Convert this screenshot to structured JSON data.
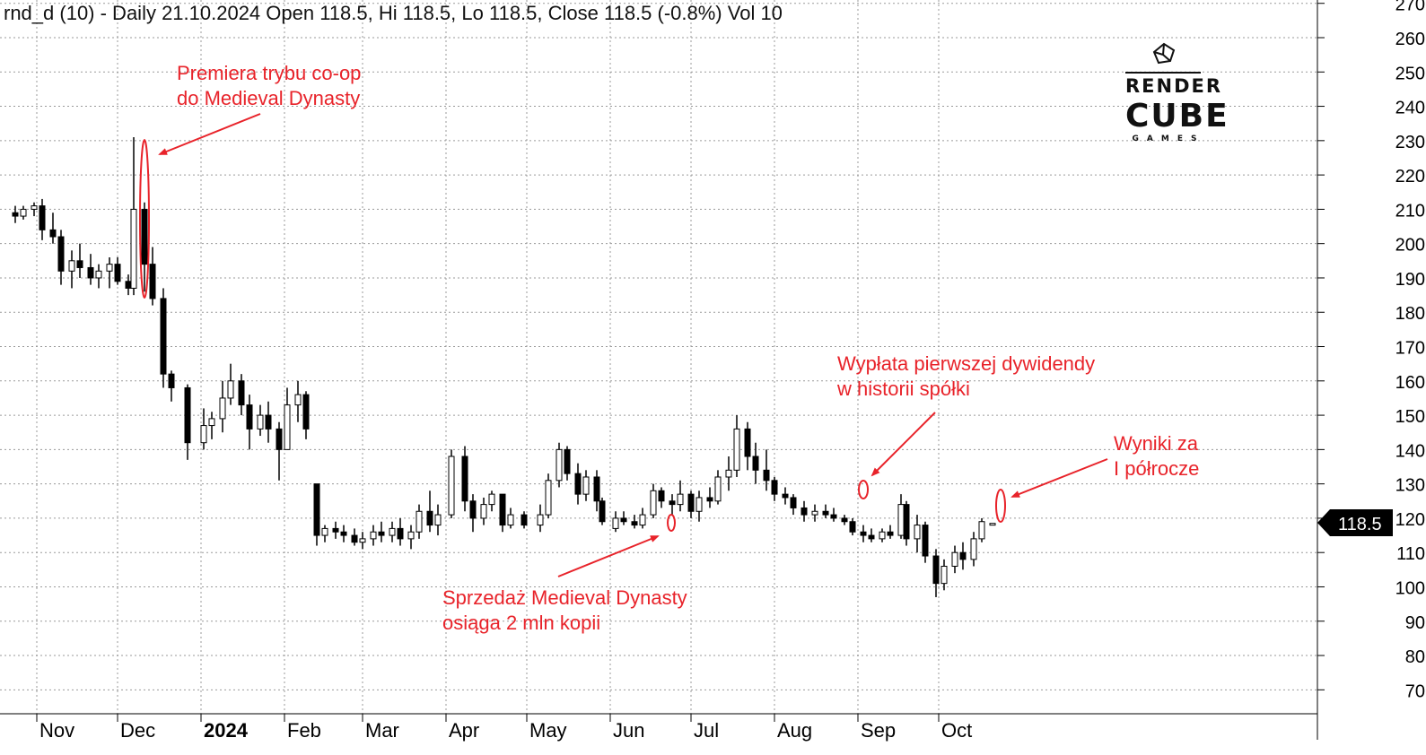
{
  "header": {
    "title": "rnd_d (10) - Daily 21.10.2024 Open 118.5, Hi 118.5, Lo 118.5, Close 118.5 (-0.8%) Vol 10"
  },
  "logo": {
    "line1": "RENDER",
    "line2": "CUBE",
    "line3": "GAMES"
  },
  "annotations": {
    "coop": {
      "line1": "Premiera trybu co-op",
      "line2": "do Medieval Dynasty"
    },
    "sales": {
      "line1": "Sprzedaż Medieval Dynasty",
      "line2": "osiąga 2 mln kopii"
    },
    "dividend": {
      "line1": "Wypłata pierwszej dywidendy",
      "line2": "w historii spółki"
    },
    "results": {
      "line1": "Wyniki za",
      "line2": "I półrocze"
    }
  },
  "price_tag": "118.5",
  "colors": {
    "annotation": "#e8232a",
    "bars": "#000000",
    "grid": "#a0a0a0"
  },
  "chart_data": {
    "type": "ohlc",
    "symbol": "rnd_d",
    "title": "rnd_d (10) - Daily 21.10.2024 Open 118.5, Hi 118.5, Lo 118.5, Close 118.5 (-0.8%) Vol 10",
    "x_ticks": [
      "Nov",
      "Dec",
      "2024",
      "Feb",
      "Mar",
      "Apr",
      "May",
      "Jun",
      "Jul",
      "Aug",
      "Sep",
      "Oct"
    ],
    "y_ticks": [
      70,
      80,
      90,
      100,
      110,
      120,
      130,
      140,
      150,
      160,
      170,
      180,
      190,
      200,
      210,
      220,
      230,
      240,
      250,
      260,
      270
    ],
    "ylim": [
      64,
      272
    ],
    "last_close": 118.5,
    "grid": true,
    "bars": [
      {
        "date": "2023-10-24",
        "open": 209,
        "high": 211,
        "low": 206,
        "close": 208
      },
      {
        "date": "2023-10-27",
        "open": 208,
        "high": 211,
        "low": 207,
        "close": 210
      },
      {
        "date": "2023-10-31",
        "open": 210,
        "high": 212,
        "low": 208,
        "close": 211
      },
      {
        "date": "2023-11-03",
        "open": 211,
        "high": 213,
        "low": 201,
        "close": 204
      },
      {
        "date": "2023-11-07",
        "open": 204,
        "high": 209,
        "low": 200,
        "close": 202
      },
      {
        "date": "2023-11-10",
        "open": 202,
        "high": 204,
        "low": 188,
        "close": 192
      },
      {
        "date": "2023-11-14",
        "open": 192,
        "high": 198,
        "low": 187,
        "close": 195
      },
      {
        "date": "2023-11-17",
        "open": 195,
        "high": 200,
        "low": 190,
        "close": 193
      },
      {
        "date": "2023-11-21",
        "open": 193,
        "high": 197,
        "low": 188,
        "close": 190
      },
      {
        "date": "2023-11-24",
        "open": 190,
        "high": 194,
        "low": 187,
        "close": 192
      },
      {
        "date": "2023-11-28",
        "open": 192,
        "high": 196,
        "low": 187,
        "close": 194
      },
      {
        "date": "2023-12-01",
        "open": 194,
        "high": 196,
        "low": 188,
        "close": 189
      },
      {
        "date": "2023-12-05",
        "open": 189,
        "high": 191,
        "low": 185,
        "close": 187
      },
      {
        "date": "2023-12-07",
        "open": 187,
        "high": 231,
        "low": 185,
        "close": 210
      },
      {
        "date": "2023-12-11",
        "open": 210,
        "high": 212,
        "low": 186,
        "close": 194
      },
      {
        "date": "2023-12-14",
        "open": 194,
        "high": 199,
        "low": 182,
        "close": 184
      },
      {
        "date": "2023-12-18",
        "open": 184,
        "high": 187,
        "low": 158,
        "close": 162
      },
      {
        "date": "2023-12-21",
        "open": 162,
        "high": 163,
        "low": 154,
        "close": 158
      },
      {
        "date": "2023-12-27",
        "open": 158,
        "high": 159,
        "low": 137,
        "close": 142
      },
      {
        "date": "2024-01-02",
        "open": 142,
        "high": 152,
        "low": 140,
        "close": 147
      },
      {
        "date": "2024-01-05",
        "open": 147,
        "high": 151,
        "low": 143,
        "close": 149
      },
      {
        "date": "2024-01-09",
        "open": 149,
        "high": 160,
        "low": 145,
        "close": 155
      },
      {
        "date": "2024-01-12",
        "open": 155,
        "high": 165,
        "low": 153,
        "close": 160
      },
      {
        "date": "2024-01-16",
        "open": 160,
        "high": 162,
        "low": 150,
        "close": 153
      },
      {
        "date": "2024-01-19",
        "open": 153,
        "high": 156,
        "low": 140,
        "close": 146
      },
      {
        "date": "2024-01-23",
        "open": 146,
        "high": 153,
        "low": 144,
        "close": 150
      },
      {
        "date": "2024-01-26",
        "open": 150,
        "high": 154,
        "low": 142,
        "close": 146
      },
      {
        "date": "2024-01-30",
        "open": 146,
        "high": 148,
        "low": 131,
        "close": 140
      },
      {
        "date": "2024-02-02",
        "open": 140,
        "high": 158,
        "low": 140,
        "close": 153
      },
      {
        "date": "2024-02-06",
        "open": 153,
        "high": 160,
        "low": 148,
        "close": 156
      },
      {
        "date": "2024-02-09",
        "open": 156,
        "high": 157,
        "low": 143,
        "close": 146
      },
      {
        "date": "2024-02-13",
        "open": 130,
        "high": 130,
        "low": 112,
        "close": 115
      },
      {
        "date": "2024-02-16",
        "open": 115,
        "high": 118,
        "low": 113,
        "close": 117
      },
      {
        "date": "2024-02-20",
        "open": 117,
        "high": 119,
        "low": 114,
        "close": 116
      },
      {
        "date": "2024-02-23",
        "open": 116,
        "high": 118,
        "low": 113,
        "close": 115
      },
      {
        "date": "2024-02-27",
        "open": 115,
        "high": 117,
        "low": 112,
        "close": 113
      },
      {
        "date": "2024-03-01",
        "open": 113,
        "high": 116,
        "low": 111,
        "close": 114
      },
      {
        "date": "2024-03-05",
        "open": 114,
        "high": 118,
        "low": 112,
        "close": 116
      },
      {
        "date": "2024-03-08",
        "open": 116,
        "high": 119,
        "low": 113,
        "close": 115
      },
      {
        "date": "2024-03-12",
        "open": 115,
        "high": 119,
        "low": 113,
        "close": 117
      },
      {
        "date": "2024-03-15",
        "open": 117,
        "high": 120,
        "low": 112,
        "close": 114
      },
      {
        "date": "2024-03-19",
        "open": 114,
        "high": 118,
        "low": 111,
        "close": 116
      },
      {
        "date": "2024-03-22",
        "open": 116,
        "high": 124,
        "low": 114,
        "close": 122
      },
      {
        "date": "2024-03-26",
        "open": 122,
        "high": 128,
        "low": 116,
        "close": 118
      },
      {
        "date": "2024-03-29",
        "open": 118,
        "high": 124,
        "low": 115,
        "close": 121
      },
      {
        "date": "2024-04-03",
        "open": 121,
        "high": 140,
        "low": 120,
        "close": 138
      },
      {
        "date": "2024-04-08",
        "open": 138,
        "high": 141,
        "low": 122,
        "close": 125
      },
      {
        "date": "2024-04-11",
        "open": 125,
        "high": 127,
        "low": 116,
        "close": 120
      },
      {
        "date": "2024-04-15",
        "open": 120,
        "high": 126,
        "low": 118,
        "close": 124
      },
      {
        "date": "2024-04-18",
        "open": 124,
        "high": 128,
        "low": 122,
        "close": 127
      },
      {
        "date": "2024-04-22",
        "open": 127,
        "high": 127,
        "low": 116,
        "close": 118
      },
      {
        "date": "2024-04-25",
        "open": 118,
        "high": 123,
        "low": 117,
        "close": 121
      },
      {
        "date": "2024-04-30",
        "open": 121,
        "high": 122,
        "low": 117,
        "close": 118
      },
      {
        "date": "2024-05-06",
        "open": 118,
        "high": 124,
        "low": 116,
        "close": 121
      },
      {
        "date": "2024-05-09",
        "open": 121,
        "high": 133,
        "low": 120,
        "close": 131
      },
      {
        "date": "2024-05-13",
        "open": 131,
        "high": 142,
        "low": 129,
        "close": 140
      },
      {
        "date": "2024-05-16",
        "open": 140,
        "high": 141,
        "low": 131,
        "close": 133
      },
      {
        "date": "2024-05-20",
        "open": 133,
        "high": 136,
        "low": 124,
        "close": 127
      },
      {
        "date": "2024-05-23",
        "open": 127,
        "high": 134,
        "low": 125,
        "close": 132
      },
      {
        "date": "2024-05-27",
        "open": 132,
        "high": 134,
        "low": 122,
        "close": 125
      },
      {
        "date": "2024-05-29",
        "open": 125,
        "high": 126,
        "low": 118,
        "close": 119
      },
      {
        "date": "2024-06-03",
        "open": 117,
        "high": 122,
        "low": 116,
        "close": 120
      },
      {
        "date": "2024-06-06",
        "open": 120,
        "high": 122,
        "low": 118,
        "close": 119
      },
      {
        "date": "2024-06-10",
        "open": 119,
        "high": 121,
        "low": 117,
        "close": 118
      },
      {
        "date": "2024-06-13",
        "open": 118,
        "high": 123,
        "low": 117,
        "close": 121
      },
      {
        "date": "2024-06-17",
        "open": 121,
        "high": 130,
        "low": 120,
        "close": 128
      },
      {
        "date": "2024-06-20",
        "open": 128,
        "high": 129,
        "low": 123,
        "close": 125
      },
      {
        "date": "2024-06-24",
        "open": 125,
        "high": 127,
        "low": 121,
        "close": 124
      },
      {
        "date": "2024-06-27",
        "open": 124,
        "high": 131,
        "low": 122,
        "close": 127
      },
      {
        "date": "2024-07-01",
        "open": 127,
        "high": 128,
        "low": 120,
        "close": 122
      },
      {
        "date": "2024-07-04",
        "open": 122,
        "high": 128,
        "low": 119,
        "close": 126
      },
      {
        "date": "2024-07-08",
        "open": 126,
        "high": 129,
        "low": 123,
        "close": 125
      },
      {
        "date": "2024-07-11",
        "open": 125,
        "high": 134,
        "low": 124,
        "close": 132
      },
      {
        "date": "2024-07-15",
        "open": 132,
        "high": 138,
        "low": 128,
        "close": 134
      },
      {
        "date": "2024-07-18",
        "open": 134,
        "high": 150,
        "low": 132,
        "close": 146
      },
      {
        "date": "2024-07-22",
        "open": 146,
        "high": 148,
        "low": 134,
        "close": 138
      },
      {
        "date": "2024-07-25",
        "open": 138,
        "high": 142,
        "low": 130,
        "close": 134
      },
      {
        "date": "2024-07-29",
        "open": 134,
        "high": 140,
        "low": 128,
        "close": 131
      },
      {
        "date": "2024-08-01",
        "open": 131,
        "high": 132,
        "low": 125,
        "close": 127
      },
      {
        "date": "2024-08-05",
        "open": 127,
        "high": 129,
        "low": 124,
        "close": 126
      },
      {
        "date": "2024-08-08",
        "open": 126,
        "high": 127,
        "low": 121,
        "close": 123
      },
      {
        "date": "2024-08-12",
        "open": 123,
        "high": 125,
        "low": 119,
        "close": 121
      },
      {
        "date": "2024-08-16",
        "open": 121,
        "high": 124,
        "low": 119,
        "close": 122
      },
      {
        "date": "2024-08-20",
        "open": 122,
        "high": 124,
        "low": 120,
        "close": 121
      },
      {
        "date": "2024-08-23",
        "open": 121,
        "high": 123,
        "low": 119,
        "close": 120
      },
      {
        "date": "2024-08-27",
        "open": 120,
        "high": 121,
        "low": 118,
        "close": 119
      },
      {
        "date": "2024-08-30",
        "open": 119,
        "high": 120,
        "low": 115,
        "close": 116
      },
      {
        "date": "2024-09-03",
        "open": 116,
        "high": 118,
        "low": 113,
        "close": 115
      },
      {
        "date": "2024-09-06",
        "open": 115,
        "high": 117,
        "low": 113,
        "close": 114
      },
      {
        "date": "2024-09-10",
        "open": 114,
        "high": 117,
        "low": 113,
        "close": 116
      },
      {
        "date": "2024-09-13",
        "open": 116,
        "high": 118,
        "low": 114,
        "close": 115
      },
      {
        "date": "2024-09-17",
        "open": 115,
        "high": 127,
        "low": 114,
        "close": 124
      },
      {
        "date": "2024-09-19",
        "open": 124,
        "high": 125,
        "low": 112,
        "close": 114
      },
      {
        "date": "2024-09-23",
        "open": 114,
        "high": 121,
        "low": 110,
        "close": 118
      },
      {
        "date": "2024-09-26",
        "open": 118,
        "high": 119,
        "low": 107,
        "close": 109
      },
      {
        "date": "2024-09-30",
        "open": 109,
        "high": 111,
        "low": 97,
        "close": 101
      },
      {
        "date": "2024-10-03",
        "open": 101,
        "high": 108,
        "low": 99,
        "close": 106
      },
      {
        "date": "2024-10-07",
        "open": 106,
        "high": 112,
        "low": 104,
        "close": 110
      },
      {
        "date": "2024-10-10",
        "open": 110,
        "high": 113,
        "low": 105,
        "close": 108
      },
      {
        "date": "2024-10-14",
        "open": 108,
        "high": 116,
        "low": 106,
        "close": 114
      },
      {
        "date": "2024-10-17",
        "open": 114,
        "high": 120,
        "low": 113,
        "close": 119
      },
      {
        "date": "2024-10-21",
        "open": 118.5,
        "high": 118.5,
        "low": 118.5,
        "close": 118.5
      }
    ]
  }
}
